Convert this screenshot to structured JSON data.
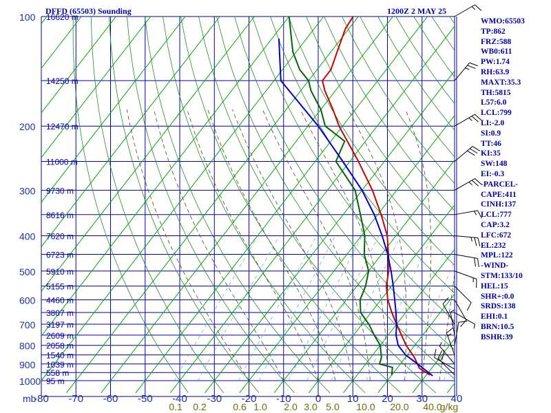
{
  "header": {
    "title": "DFFD (65503) Sounding",
    "date": "1200Z  2 MAY 25"
  },
  "indices": [
    "WMO:65503",
    "TP:862",
    "FRZ:588",
    "WB0:611",
    "PW:1.74",
    "RH:63.9",
    "MAXT:35.3",
    "TH:5815",
    "L57:6.0",
    "LCL:799",
    "LI:-2.0",
    "SI:0.9",
    "TT:46",
    "KI:35",
    "SW:148",
    "EI:-0.3",
    "-PARCEL-",
    "CAPE:411",
    "CINH:137",
    "LCL:777",
    "CAP:3.2",
    "LFC:672",
    "EL:232",
    "MPL:122",
    "-WIND-",
    "STM:133/10",
    "HEL:15",
    "SHR+:0.0",
    "SRDS:138",
    "EHI:0.1",
    "BRN:10.5",
    "BSHR:39"
  ],
  "colors": {
    "grid": "#0000a0",
    "label": "#1c2fa8",
    "isotherm": "#00a800",
    "dry_adiabat": "#228b22",
    "moist_adiabat": "#4a4a20",
    "mixing_ratio": "#6fa8e0",
    "temperature": "#c80000",
    "dewpoint": "#006400",
    "parcel": "#0000c8",
    "wind": "#000000",
    "mixing_label": "#6b6b00"
  },
  "chart_data": {
    "type": "line",
    "chart_kind": "skew-T log-P",
    "x_unit_label": "mb",
    "xlim": [
      -80,
      40
    ],
    "ylim": [
      1000,
      100
    ],
    "y_scale": "log",
    "x_ticks": [
      -80,
      -70,
      -60,
      -50,
      -40,
      -30,
      -20,
      -10,
      0,
      10,
      20,
      30,
      40
    ],
    "y_ticks": [
      100,
      200,
      300,
      400,
      500,
      600,
      700,
      800,
      900,
      1000
    ],
    "extra_pressure_lines": [
      150,
      250,
      350,
      450,
      550,
      650,
      750,
      850,
      950
    ],
    "height_labels": [
      {
        "p": 100,
        "h": "16620 m"
      },
      {
        "p": 150,
        "h": "14250 m"
      },
      {
        "p": 200,
        "h": "12470 m"
      },
      {
        "p": 250,
        "h": "11000 m"
      },
      {
        "p": 300,
        "h": "9730 m"
      },
      {
        "p": 350,
        "h": "8616 m"
      },
      {
        "p": 400,
        "h": "7620 m"
      },
      {
        "p": 450,
        "h": "6723 m"
      },
      {
        "p": 500,
        "h": "5910 m"
      },
      {
        "p": 550,
        "h": "5155 m"
      },
      {
        "p": 600,
        "h": "4460 m"
      },
      {
        "p": 650,
        "h": "3807 m"
      },
      {
        "p": 700,
        "h": "3197 m"
      },
      {
        "p": 750,
        "h": "2609 m"
      },
      {
        "p": 800,
        "h": "2058 m"
      },
      {
        "p": 850,
        "h": "1540 m"
      },
      {
        "p": 900,
        "h": "1039 m"
      },
      {
        "p": 950,
        "h": "558 m"
      },
      {
        "p": 1000,
        "h": "95 m"
      }
    ],
    "mixing_ratio_labels": [
      "0.1",
      "0.2",
      "0.6",
      "1.0",
      "2.0",
      "3.0",
      "5.0",
      "10.0",
      "20.0",
      "40.0"
    ],
    "mixing_ratio_unit": "g/kg",
    "series": [
      {
        "key": "temperature",
        "values": [
          {
            "p": 965,
            "t": 31
          },
          {
            "p": 925,
            "t": 26.5
          },
          {
            "p": 862,
            "t": 22.5
          },
          {
            "p": 800,
            "t": 17.5
          },
          {
            "p": 700,
            "t": 10
          },
          {
            "p": 650,
            "t": 6
          },
          {
            "p": 600,
            "t": 2
          },
          {
            "p": 550,
            "t": -1.5
          },
          {
            "p": 500,
            "t": -4.2
          },
          {
            "p": 450,
            "t": -8
          },
          {
            "p": 400,
            "t": -12.5
          },
          {
            "p": 350,
            "t": -19
          },
          {
            "p": 300,
            "t": -27
          },
          {
            "p": 250,
            "t": -37.5
          },
          {
            "p": 200,
            "t": -51
          },
          {
            "p": 180,
            "t": -56.5
          },
          {
            "p": 160,
            "t": -63
          },
          {
            "p": 150,
            "t": -66
          },
          {
            "p": 140,
            "t": -66
          },
          {
            "p": 120,
            "t": -69
          },
          {
            "p": 108,
            "t": -71
          },
          {
            "p": 100,
            "t": -71.5
          }
        ]
      },
      {
        "key": "dewpoint",
        "values": [
          {
            "p": 965,
            "t": 20
          },
          {
            "p": 950,
            "t": 19.5
          },
          {
            "p": 920,
            "t": 18.5
          },
          {
            "p": 900,
            "t": 14
          },
          {
            "p": 862,
            "t": 13
          },
          {
            "p": 800,
            "t": 10
          },
          {
            "p": 750,
            "t": 6
          },
          {
            "p": 700,
            "t": 2
          },
          {
            "p": 650,
            "t": -3
          },
          {
            "p": 600,
            "t": -6
          },
          {
            "p": 550,
            "t": -7.5
          },
          {
            "p": 500,
            "t": -10
          },
          {
            "p": 450,
            "t": -15
          },
          {
            "p": 400,
            "t": -19
          },
          {
            "p": 350,
            "t": -25
          },
          {
            "p": 300,
            "t": -32
          },
          {
            "p": 250,
            "t": -44
          },
          {
            "p": 220,
            "t": -46
          },
          {
            "p": 200,
            "t": -55
          },
          {
            "p": 180,
            "t": -60
          },
          {
            "p": 160,
            "t": -67
          },
          {
            "p": 150,
            "t": -70
          },
          {
            "p": 140,
            "t": -75
          },
          {
            "p": 125,
            "t": -81
          },
          {
            "p": 100,
            "t": -90
          }
        ]
      },
      {
        "key": "parcel",
        "values": [
          {
            "p": 970,
            "t": 32
          },
          {
            "p": 900,
            "t": 25
          },
          {
            "p": 850,
            "t": 19.5
          },
          {
            "p": 800,
            "t": 15.2
          },
          {
            "p": 750,
            "t": 12.3
          },
          {
            "p": 700,
            "t": 10
          },
          {
            "p": 650,
            "t": 7.2
          },
          {
            "p": 600,
            "t": 4
          },
          {
            "p": 550,
            "t": 0.5
          },
          {
            "p": 500,
            "t": -3.5
          },
          {
            "p": 450,
            "t": -8.2
          },
          {
            "p": 400,
            "t": -14
          },
          {
            "p": 350,
            "t": -21
          },
          {
            "p": 300,
            "t": -30
          },
          {
            "p": 250,
            "t": -42
          },
          {
            "p": 200,
            "t": -57
          },
          {
            "p": 150,
            "t": -78
          },
          {
            "p": 115,
            "t": -88
          }
        ]
      }
    ],
    "wind_barbs": [
      {
        "p": 965,
        "dir": 315,
        "spd": 20
      },
      {
        "p": 930,
        "dir": 300,
        "spd": 10
      },
      {
        "p": 900,
        "dir": 320,
        "spd": 5
      },
      {
        "p": 850,
        "dir": 340,
        "spd": 15
      },
      {
        "p": 800,
        "dir": 10,
        "spd": 10
      },
      {
        "p": 750,
        "dir": 350,
        "spd": 5
      },
      {
        "p": 700,
        "dir": 330,
        "spd": 10
      },
      {
        "p": 650,
        "dir": 120,
        "spd": 5
      },
      {
        "p": 600,
        "dir": 150,
        "spd": 10
      },
      {
        "p": 550,
        "dir": 135,
        "spd": 10
      },
      {
        "p": 500,
        "dir": 110,
        "spd": 15
      },
      {
        "p": 450,
        "dir": 100,
        "spd": 20
      },
      {
        "p": 400,
        "dir": 95,
        "spd": 25
      },
      {
        "p": 350,
        "dir": 80,
        "spd": 15
      },
      {
        "p": 300,
        "dir": 60,
        "spd": 25
      },
      {
        "p": 250,
        "dir": 50,
        "spd": 30
      },
      {
        "p": 200,
        "dir": 60,
        "spd": 25
      },
      {
        "p": 150,
        "dir": 40,
        "spd": 25
      },
      {
        "p": 100,
        "dir": 60,
        "spd": 15
      }
    ]
  }
}
